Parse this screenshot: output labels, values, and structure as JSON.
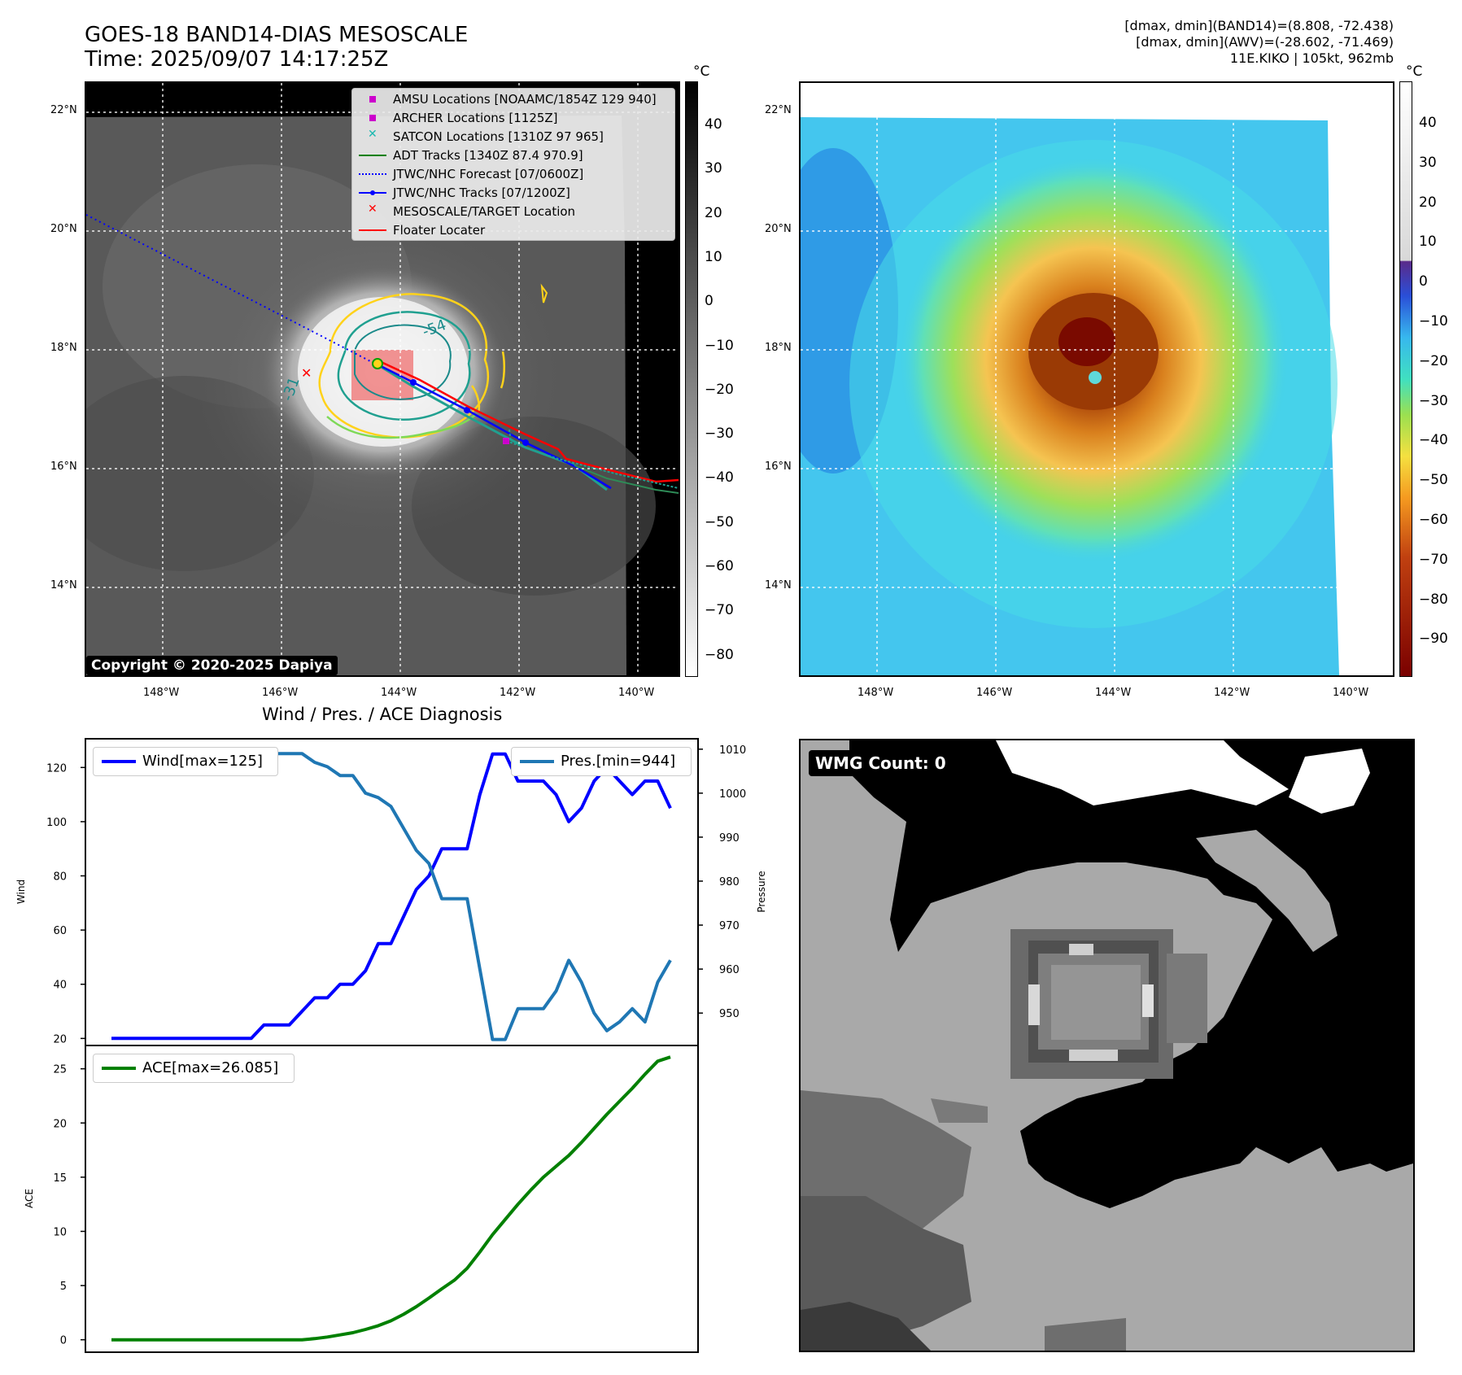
{
  "header": {
    "title_line1": "GOES-18 BAND14-DIAS MESOSCALE",
    "title_line2": "Time: 2025/09/07 14:17:25Z",
    "info_line1": "[dmax, dmin](BAND14)=(8.808, -72.438)",
    "info_line2": "[dmax, dmin](AWV)=(-28.602, -71.469)",
    "info_line3": "11E.KIKO | 105kt, 962mb"
  },
  "map": {
    "lat_labels": [
      "22°N",
      "20°N",
      "18°N",
      "16°N",
      "14°N"
    ],
    "lon_labels": [
      "148°W",
      "146°W",
      "144°W",
      "142°W",
      "140°W"
    ],
    "copyright": "Copyright © 2020-2025 Dapiya",
    "contour_labels": [
      "-54",
      "-31"
    ],
    "legend": [
      {
        "label": "AMSU Locations [NOAAMC/1854Z 129 940]",
        "color": "#cc00cc",
        "icon": "square-marker"
      },
      {
        "label": "ARCHER Locations [1125Z]",
        "color": "#cc00cc",
        "icon": "square-marker"
      },
      {
        "label": "SATCON Locations [1310Z 97 965]",
        "color": "#17b8b0",
        "icon": "x-marker"
      },
      {
        "label": "ADT Tracks [1340Z 87.4 970.9]",
        "color": "#008000",
        "icon": "solid-line"
      },
      {
        "label": "JTWC/NHC Forecast [07/0600Z]",
        "color": "#0000ff",
        "icon": "dotted-line"
      },
      {
        "label": "JTWC/NHC Tracks [07/1200Z]",
        "color": "#0000ff",
        "icon": "line-with-dot"
      },
      {
        "label": "MESOSCALE/TARGET Location",
        "color": "#ff0000",
        "icon": "x-marker"
      },
      {
        "label": "Floater Locater",
        "color": "#ff0000",
        "icon": "solid-line"
      }
    ]
  },
  "colorbar_left": {
    "unit": "°C",
    "ticks": [
      "40",
      "30",
      "20",
      "10",
      "0",
      "−10",
      "−20",
      "−30",
      "−40",
      "−50",
      "−60",
      "−70",
      "−80"
    ]
  },
  "colorbar_right": {
    "unit": "°C",
    "ticks": [
      "40",
      "30",
      "20",
      "10",
      "0",
      "−10",
      "−20",
      "−30",
      "−40",
      "−50",
      "−60",
      "−70",
      "−80",
      "−90"
    ]
  },
  "wmg": {
    "label": "WMG Count: 0"
  },
  "chart_data": [
    {
      "type": "line",
      "title": "Wind / Pres. / ACE Diagnosis",
      "ylabel": "Wind",
      "ylim": [
        18,
        130
      ],
      "yticks": [
        "20",
        "40",
        "60",
        "80",
        "100",
        "120"
      ],
      "series": [
        {
          "name": "Wind[max=125]",
          "color": "#0000ff",
          "values": [
            20,
            20,
            20,
            20,
            20,
            20,
            20,
            20,
            20,
            20,
            20,
            20,
            25,
            25,
            25,
            30,
            35,
            35,
            40,
            40,
            45,
            55,
            55,
            65,
            75,
            80,
            90,
            90,
            90,
            110,
            125,
            125,
            115,
            115,
            115,
            110,
            100,
            105,
            115,
            120,
            115,
            110,
            115,
            115,
            105
          ]
        }
      ]
    },
    {
      "type": "line",
      "ylabel": "Pressure",
      "ylim": [
        943,
        1012
      ],
      "yticks": [
        "950",
        "960",
        "970",
        "980",
        "990",
        "1000",
        "1010"
      ],
      "series": [
        {
          "name": "Pres.[min=944]",
          "color": "#1f77b4",
          "values": [
            1010,
            1010,
            1010,
            1010,
            1010,
            1010,
            1010,
            1010,
            1010,
            1010,
            1010,
            1009,
            1009,
            1009,
            1009,
            1009,
            1007,
            1006,
            1004,
            1004,
            1000,
            999,
            997,
            992,
            987,
            984,
            976,
            976,
            976,
            960,
            944,
            944,
            951,
            951,
            951,
            955,
            962,
            957,
            950,
            946,
            948,
            951,
            948,
            957,
            962
          ]
        }
      ]
    },
    {
      "type": "line",
      "ylabel": "ACE",
      "ylim": [
        -1,
        27
      ],
      "yticks": [
        "0",
        "5",
        "10",
        "15",
        "20",
        "25"
      ],
      "series": [
        {
          "name": "ACE[max=26.085]",
          "color": "#008000",
          "values": [
            0,
            0,
            0,
            0,
            0,
            0,
            0,
            0,
            0,
            0,
            0,
            0,
            0,
            0,
            0,
            0,
            0.1,
            0.25,
            0.45,
            0.65,
            0.95,
            1.3,
            1.75,
            2.35,
            3.05,
            3.85,
            4.7,
            5.5,
            6.6,
            8.1,
            9.7,
            11.1,
            12.5,
            13.8,
            15.0,
            16.0,
            17.0,
            18.2,
            19.5,
            20.8,
            22.0,
            23.2,
            24.5,
            25.7,
            26.085
          ]
        }
      ]
    }
  ]
}
